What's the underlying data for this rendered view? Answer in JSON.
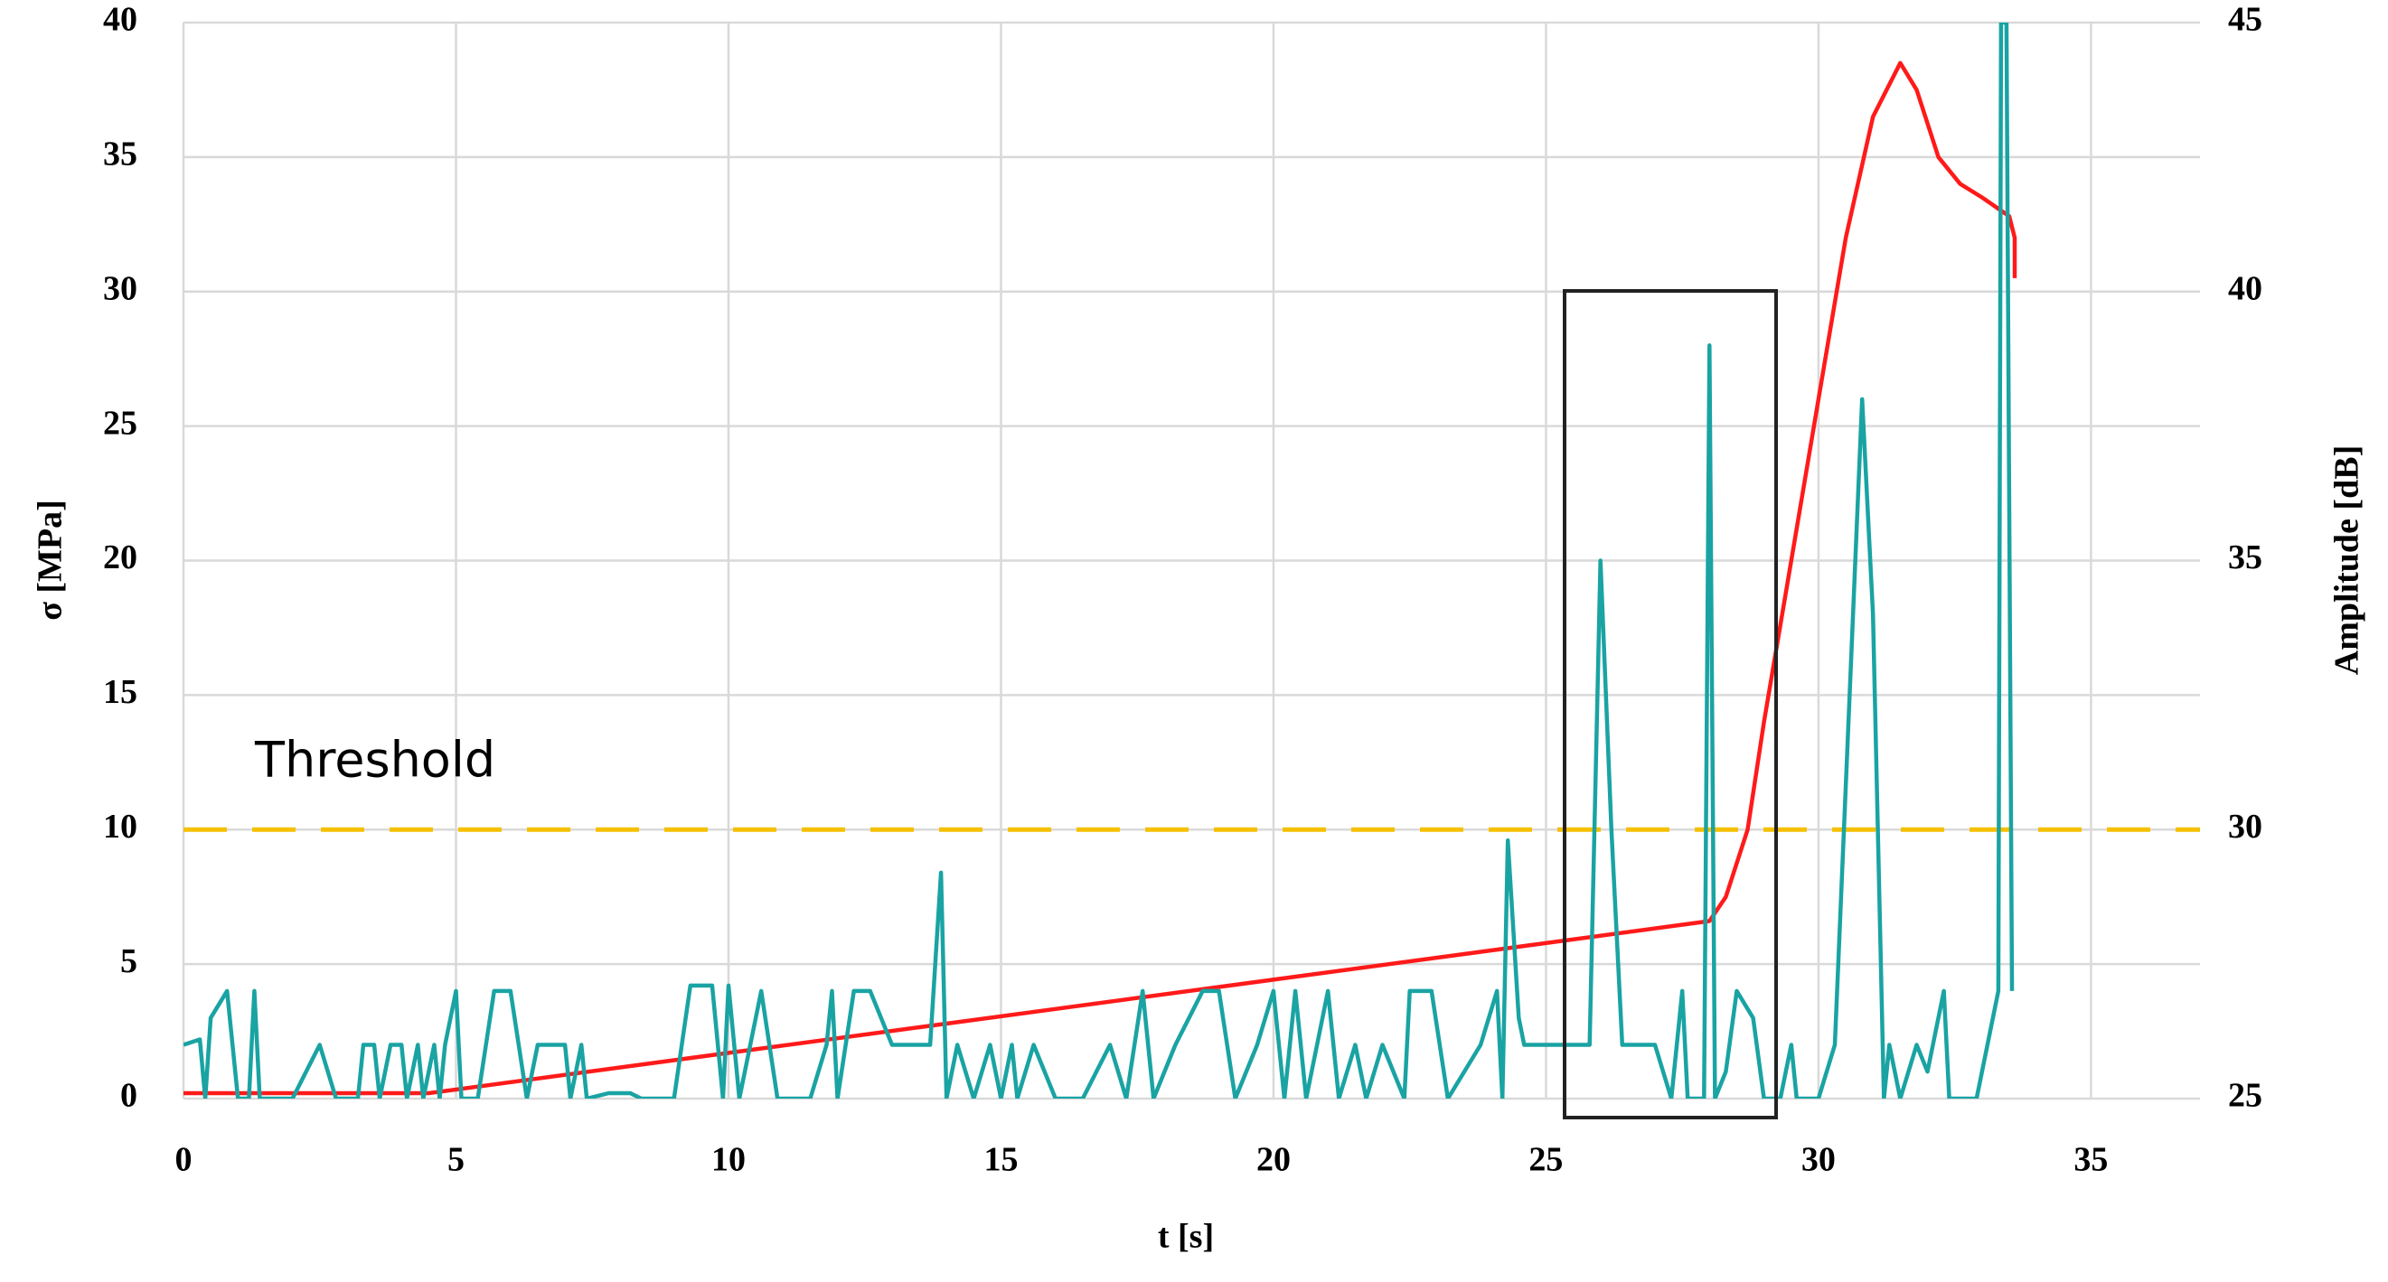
{
  "chart_data": {
    "type": "line",
    "xlabel": "t [s]",
    "ylabel": "σ [MPa]",
    "y2label": "Amplitude [dB]",
    "xlim": [
      0,
      37
    ],
    "xticks": [
      0,
      5,
      10,
      15,
      20,
      25,
      30,
      35
    ],
    "ylim": [
      0,
      40
    ],
    "yticks": [
      0,
      5,
      10,
      15,
      20,
      25,
      30,
      35,
      40
    ],
    "y2lim": [
      25,
      45
    ],
    "y2ticks": [
      25,
      30,
      35,
      40,
      45
    ],
    "grid": true,
    "threshold": {
      "label": "Threshold",
      "value": 30,
      "axis": "y2",
      "color": "#f5c000"
    },
    "series": [
      {
        "color": "#ff1a1a",
        "axis": "y",
        "x": [
          0,
          1,
          4.5,
          28,
          28.3,
          28.7,
          29,
          29.5,
          30,
          30.5,
          31,
          31.5,
          31.8,
          32.2,
          32.6,
          33,
          33.5,
          33.6,
          33.6
        ],
        "values": [
          0.2,
          0.2,
          0.2,
          6.6,
          7.5,
          10,
          14,
          20,
          26,
          32,
          36.5,
          38.5,
          37.5,
          35,
          34,
          33.5,
          32.8,
          32,
          30.5
        ]
      },
      {
        "color": "#1aa3a3",
        "axis": "y2",
        "x": [
          0,
          0.3,
          0.4,
          0.5,
          0.8,
          1.0,
          1.2,
          1.3,
          1.4,
          2.0,
          2.5,
          2.8,
          3.2,
          3.3,
          3.5,
          3.6,
          3.8,
          4.0,
          4.1,
          4.3,
          4.4,
          4.6,
          4.7,
          4.8,
          5.0,
          5.1,
          5.4,
          5.7,
          6.0,
          6.3,
          6.5,
          7.0,
          7.1,
          7.3,
          7.4,
          7.8,
          8.2,
          8.4,
          9.0,
          9.3,
          9.7,
          9.9,
          10.0,
          10.2,
          10.6,
          10.9,
          11.5,
          11.8,
          11.9,
          12.0,
          12.3,
          12.6,
          13.0,
          13.3,
          13.7,
          13.9,
          14.0,
          14.2,
          14.5,
          14.8,
          15.0,
          15.2,
          15.3,
          15.6,
          16.0,
          16.5,
          17.0,
          17.3,
          17.6,
          17.8,
          18.2,
          18.7,
          19.0,
          19.3,
          19.7,
          20.0,
          20.2,
          20.4,
          20.6,
          21.0,
          21.2,
          21.5,
          21.7,
          22.0,
          22.4,
          22.5,
          22.9,
          23.2,
          23.8,
          24.1,
          24.2,
          24.3,
          24.5,
          24.6,
          25.5,
          25.8,
          26.0,
          26.2,
          26.4,
          26.6,
          27.0,
          27.3,
          27.5,
          27.6,
          27.9,
          28.0,
          28.1,
          28.3,
          28.5,
          28.8,
          29.0,
          29.3,
          29.5,
          29.6,
          30.0,
          30.3,
          30.8,
          31.0,
          31.2,
          31.3,
          31.5,
          31.8,
          32.0,
          32.3,
          32.4,
          32.9,
          33.3,
          33.35,
          33.45,
          33.55
        ],
        "values": [
          26,
          26.1,
          25,
          26.5,
          27,
          25,
          25,
          27,
          25,
          25,
          26,
          25,
          25,
          26,
          26,
          25,
          26,
          26,
          25,
          26,
          25,
          26,
          25,
          26,
          27,
          25,
          25,
          27,
          27,
          25,
          26,
          26,
          25,
          26,
          25,
          25.1,
          25.1,
          25,
          25,
          27.1,
          27.1,
          25,
          27.1,
          25,
          27,
          25,
          25,
          26,
          27,
          25,
          27,
          27,
          26,
          26,
          26,
          29.2,
          25,
          26,
          25,
          26,
          25,
          26,
          25,
          26,
          25,
          25,
          26,
          25,
          27,
          25,
          26,
          27,
          27,
          25,
          26,
          27,
          25,
          27,
          25,
          27,
          25,
          26,
          25,
          26,
          25,
          27,
          27,
          25,
          26,
          27,
          25,
          29.8,
          26.5,
          26,
          26,
          26,
          35,
          30,
          26,
          26,
          26,
          25,
          27,
          25,
          25,
          39,
          25,
          25.5,
          27,
          26.5,
          25,
          25,
          26,
          25,
          25,
          26,
          38,
          34,
          25,
          26,
          25,
          26,
          25.5,
          27,
          25,
          25,
          27,
          45,
          45,
          27
        ]
      }
    ]
  }
}
